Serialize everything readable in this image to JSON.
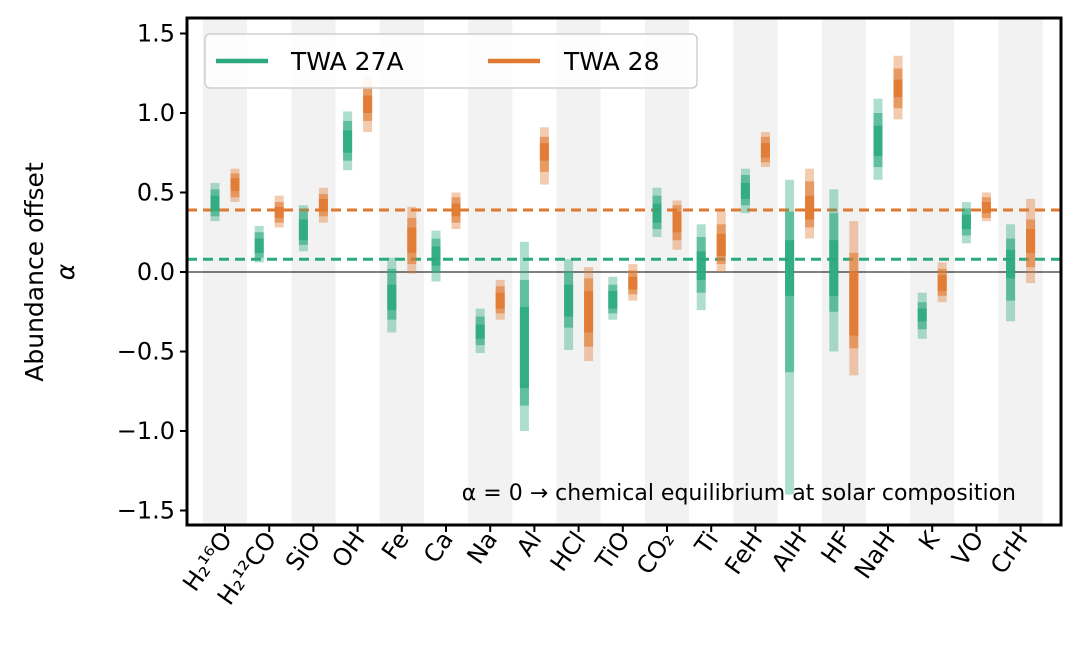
{
  "chart_data": {
    "type": "range",
    "ylabel_line1": "Abundance offset",
    "ylabel_line2": "α",
    "ylim": [
      -1.6,
      1.6
    ],
    "yticks": [
      -1.5,
      -1.0,
      -0.5,
      0.0,
      0.5,
      1.0,
      1.5
    ],
    "ytick_labels": [
      "−1.5",
      "−1.0",
      "−0.5",
      "0.0",
      "0.5",
      "1.0",
      "1.5"
    ],
    "categories": [
      "H₂¹⁶O",
      "H₂¹²CO",
      "SiO",
      "OH",
      "Fe",
      "Ca",
      "Na",
      "Al",
      "HCl",
      "TiO",
      "CO₂",
      "Ti",
      "FeH",
      "AlH",
      "HF",
      "NaH",
      "K",
      "VO",
      "CrH"
    ],
    "legend_location": "upper left",
    "annotation": "α = 0 → chemical equilibrium at solar composition",
    "series": [
      {
        "name": "TWA 27A",
        "color": "#2ca97d",
        "reference_line": 0.08,
        "intervals": [
          {
            "median": 0.43,
            "s1": [
              0.38,
              0.48
            ],
            "s2": [
              0.35,
              0.52
            ],
            "s3": [
              0.32,
              0.56
            ]
          },
          {
            "median": 0.16,
            "s1": [
              0.12,
              0.21
            ],
            "s2": [
              0.09,
              0.25
            ],
            "s3": [
              0.06,
              0.29
            ]
          },
          {
            "median": 0.26,
            "s1": [
              0.2,
              0.33
            ],
            "s2": [
              0.17,
              0.38
            ],
            "s3": [
              0.13,
              0.42
            ]
          },
          {
            "median": 0.82,
            "s1": [
              0.75,
              0.89
            ],
            "s2": [
              0.7,
              0.95
            ],
            "s3": [
              0.64,
              1.01
            ]
          },
          {
            "median": -0.18,
            "s1": [
              -0.24,
              -0.08
            ],
            "s2": [
              -0.3,
              0.02
            ],
            "s3": [
              -0.38,
              0.09
            ]
          },
          {
            "median": 0.1,
            "s1": [
              0.04,
              0.16
            ],
            "s2": [
              0.0,
              0.21
            ],
            "s3": [
              -0.06,
              0.26
            ]
          },
          {
            "median": -0.38,
            "s1": [
              -0.42,
              -0.33
            ],
            "s2": [
              -0.46,
              -0.28
            ],
            "s3": [
              -0.51,
              -0.23
            ]
          },
          {
            "median": -0.45,
            "s1": [
              -0.73,
              -0.22
            ],
            "s2": [
              -0.84,
              -0.05
            ],
            "s3": [
              -1.0,
              0.19
            ]
          },
          {
            "median": -0.18,
            "s1": [
              -0.28,
              -0.08
            ],
            "s2": [
              -0.35,
              0.0
            ],
            "s3": [
              -0.49,
              0.08
            ]
          },
          {
            "median": -0.18,
            "s1": [
              -0.23,
              -0.12
            ],
            "s2": [
              -0.26,
              -0.08
            ],
            "s3": [
              -0.3,
              -0.03
            ]
          },
          {
            "median": 0.38,
            "s1": [
              0.31,
              0.43
            ],
            "s2": [
              0.27,
              0.48
            ],
            "s3": [
              0.22,
              0.53
            ]
          },
          {
            "median": 0.05,
            "s1": [
              -0.05,
              0.13
            ],
            "s2": [
              -0.13,
              0.22
            ],
            "s3": [
              -0.24,
              0.3
            ]
          },
          {
            "median": 0.51,
            "s1": [
              0.46,
              0.56
            ],
            "s2": [
              0.42,
              0.61
            ],
            "s3": [
              0.37,
              0.65
            ]
          },
          {
            "median": 0.05,
            "s1": [
              -0.15,
              0.2
            ],
            "s2": [
              -0.63,
              0.38
            ],
            "s3": [
              -1.4,
              0.58
            ]
          },
          {
            "median": 0.02,
            "s1": [
              -0.15,
              0.2
            ],
            "s2": [
              -0.25,
              0.37
            ],
            "s3": [
              -0.5,
              0.52
            ]
          },
          {
            "median": 0.83,
            "s1": [
              0.73,
              0.92
            ],
            "s2": [
              0.66,
              1.0
            ],
            "s3": [
              0.58,
              1.09
            ]
          },
          {
            "median": -0.27,
            "s1": [
              -0.31,
              -0.23
            ],
            "s2": [
              -0.36,
              -0.19
            ],
            "s3": [
              -0.42,
              -0.13
            ]
          },
          {
            "median": 0.3,
            "s1": [
              0.27,
              0.36
            ],
            "s2": [
              0.23,
              0.4
            ],
            "s3": [
              0.18,
              0.44
            ]
          },
          {
            "median": 0.05,
            "s1": [
              -0.04,
              0.14
            ],
            "s2": [
              -0.18,
              0.21
            ],
            "s3": [
              -0.31,
              0.3
            ]
          }
        ]
      },
      {
        "name": "TWA 28",
        "color": "#e0782f",
        "reference_line": 0.39,
        "intervals": [
          {
            "median": 0.55,
            "s1": [
              0.51,
              0.59
            ],
            "s2": [
              0.47,
              0.62
            ],
            "s3": [
              0.44,
              0.65
            ]
          },
          {
            "median": 0.38,
            "s1": [
              0.34,
              0.41
            ],
            "s2": [
              0.31,
              0.44
            ],
            "s3": [
              0.28,
              0.48
            ]
          },
          {
            "median": 0.42,
            "s1": [
              0.38,
              0.46
            ],
            "s2": [
              0.35,
              0.49
            ],
            "s3": [
              0.31,
              0.53
            ]
          },
          {
            "median": 1.06,
            "s1": [
              1.0,
              1.11
            ],
            "s2": [
              0.95,
              1.17
            ],
            "s3": [
              0.88,
              1.23
            ]
          },
          {
            "median": 0.22,
            "s1": [
              0.12,
              0.28
            ],
            "s2": [
              0.05,
              0.34
            ],
            "s3": [
              -0.01,
              0.41
            ]
          },
          {
            "median": 0.38,
            "s1": [
              0.35,
              0.43
            ],
            "s2": [
              0.31,
              0.47
            ],
            "s3": [
              0.27,
              0.5
            ]
          },
          {
            "median": -0.18,
            "s1": [
              -0.23,
              -0.13
            ],
            "s2": [
              -0.26,
              -0.09
            ],
            "s3": [
              -0.3,
              -0.05
            ]
          },
          {
            "median": 0.76,
            "s1": [
              0.7,
              0.81
            ],
            "s2": [
              0.63,
              0.85
            ],
            "s3": [
              0.55,
              0.91
            ]
          },
          {
            "median": -0.25,
            "s1": [
              -0.38,
              -0.12
            ],
            "s2": [
              -0.47,
              -0.04
            ],
            "s3": [
              -0.56,
              0.03
            ]
          },
          {
            "median": -0.07,
            "s1": [
              -0.11,
              -0.03
            ],
            "s2": [
              -0.14,
              0.01
            ],
            "s3": [
              -0.18,
              0.05
            ]
          },
          {
            "median": 0.32,
            "s1": [
              0.25,
              0.38
            ],
            "s2": [
              0.2,
              0.42
            ],
            "s3": [
              0.14,
              0.45
            ]
          },
          {
            "median": 0.17,
            "s1": [
              0.1,
              0.24
            ],
            "s2": [
              0.05,
              0.3
            ],
            "s3": [
              0.0,
              0.38
            ]
          },
          {
            "median": 0.77,
            "s1": [
              0.72,
              0.81
            ],
            "s2": [
              0.69,
              0.85
            ],
            "s3": [
              0.66,
              0.88
            ]
          },
          {
            "median": 0.4,
            "s1": [
              0.33,
              0.48
            ],
            "s2": [
              0.28,
              0.57
            ],
            "s3": [
              0.21,
              0.65
            ]
          },
          {
            "median": -0.2,
            "s1": [
              -0.4,
              0.0
            ],
            "s2": [
              -0.48,
              0.12
            ],
            "s3": [
              -0.65,
              0.32
            ]
          },
          {
            "median": 1.15,
            "s1": [
              1.1,
              1.21
            ],
            "s2": [
              1.03,
              1.28
            ],
            "s3": [
              0.96,
              1.36
            ]
          },
          {
            "median": -0.07,
            "s1": [
              -0.12,
              -0.02
            ],
            "s2": [
              -0.15,
              0.02
            ],
            "s3": [
              -0.19,
              0.06
            ]
          },
          {
            "median": 0.4,
            "s1": [
              0.37,
              0.44
            ],
            "s2": [
              0.34,
              0.47
            ],
            "s3": [
              0.32,
              0.5
            ]
          },
          {
            "median": 0.18,
            "s1": [
              0.12,
              0.27
            ],
            "s2": [
              0.03,
              0.33
            ],
            "s3": [
              -0.07,
              0.46
            ]
          }
        ]
      }
    ]
  }
}
